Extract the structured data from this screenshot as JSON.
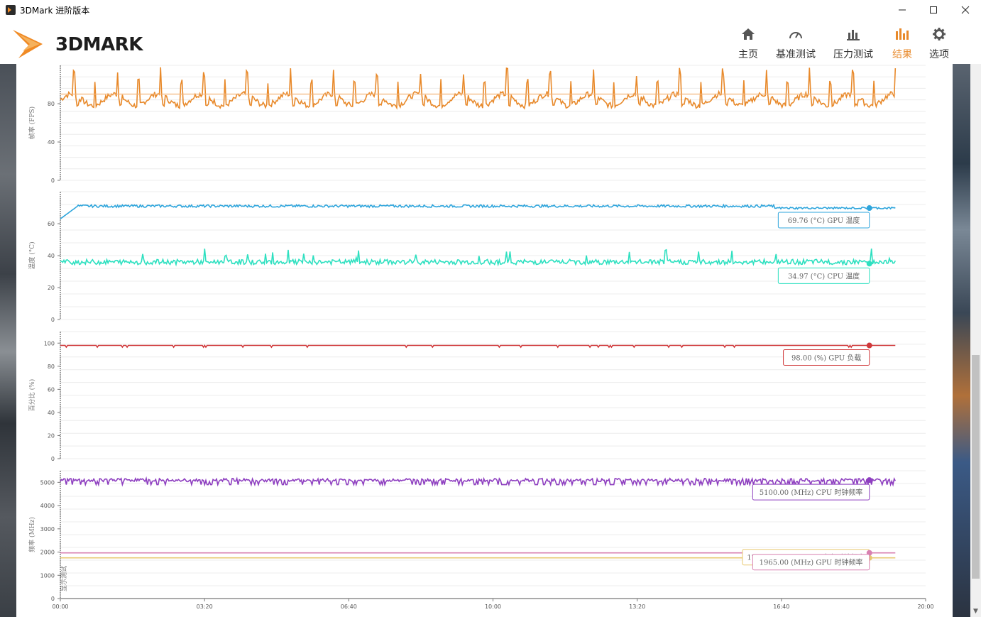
{
  "window": {
    "title": "3DMark 进阶版本"
  },
  "logo": {
    "text": "3DMARK"
  },
  "nav": [
    {
      "label": "主页",
      "icon": "home-icon"
    },
    {
      "label": "基准测试",
      "icon": "gauge-icon"
    },
    {
      "label": "压力测试",
      "icon": "bars-icon"
    },
    {
      "label": "结果",
      "icon": "results-icon",
      "active": true
    },
    {
      "label": "选项",
      "icon": "gear-icon"
    }
  ],
  "colors": {
    "accent": "#e8892a",
    "fps": "#e8892a",
    "fps_avg": "#f2b47a",
    "gpu_temp": "#2ea5dc",
    "cpu_temp": "#2de0c0",
    "gpu_load": "#d0383a",
    "cpu_clock": "#8e3fc0",
    "gpu_mem_clock": "#e8c870",
    "gpu_clock": "#d880b0"
  },
  "chart_data": [
    {
      "type": "line",
      "ylabel": "帧率 (FPS)",
      "ylim": [
        0,
        120
      ],
      "yticks": [
        "0",
        "40",
        "80"
      ],
      "series": [
        {
          "values_range": [
            76,
            120
          ],
          "typical": 88,
          "period_minutes": 1.0
        },
        {
          "values_range": [
            90,
            90
          ],
          "typical": 90
        }
      ]
    },
    {
      "type": "line",
      "ylabel": "温度 (°C)",
      "ylim": [
        0,
        80
      ],
      "yticks": [
        "0",
        "20",
        "40",
        "60"
      ],
      "series": [
        {
          "name": "GPU 温度",
          "current": 69.76,
          "typical": 71,
          "start": 63
        },
        {
          "name": "CPU 温度",
          "current": 34.97,
          "typical": 36,
          "noise": 3
        }
      ],
      "badges": [
        {
          "text": "69.76 (°C) GPU 温度",
          "series": 0
        },
        {
          "text": "34.97 (°C) CPU 温度",
          "series": 1
        }
      ]
    },
    {
      "type": "line",
      "ylabel": "百分比 (%)",
      "ylim": [
        0,
        110
      ],
      "yticks": [
        "0",
        "20",
        "40",
        "60",
        "80",
        "100"
      ],
      "series": [
        {
          "name": "GPU 负载",
          "current": 98.0,
          "typical": 98
        }
      ],
      "badges": [
        {
          "text": "98.00 (%) GPU 负载",
          "series": 0
        }
      ]
    },
    {
      "type": "line",
      "ylabel": "频率 (MHz)",
      "ylim": [
        0,
        5500
      ],
      "yticks": [
        "0",
        "1000",
        "2000",
        "3000",
        "4000",
        "5000"
      ],
      "series": [
        {
          "name": "CPU 时钟频率",
          "current": 5100.0,
          "typical": 5100,
          "dip": 4900
        },
        {
          "name": "GPU 内存时钟频率",
          "current": 1750.25,
          "typical": 1750
        },
        {
          "name": "GPU 时钟频率",
          "current": 1965.0,
          "typical": 1965
        }
      ],
      "badges": [
        {
          "text": "5100.00 (MHz) CPU 时钟频率",
          "series": 0
        },
        {
          "text": "1750.25 (MHz) GPU 内存时钟频率",
          "series": 1
        },
        {
          "text": "1965.00 (MHz) GPU 时钟频率",
          "series": 2
        }
      ],
      "marker_text": "显示测试"
    }
  ],
  "x_axis": {
    "range_minutes": [
      0,
      20
    ],
    "ticks": [
      "00:00",
      "03:20",
      "06:40",
      "10:00",
      "13:20",
      "16:40",
      "20:00"
    ],
    "data_end_minutes": 19.3,
    "cursor_minutes": 18.7
  }
}
